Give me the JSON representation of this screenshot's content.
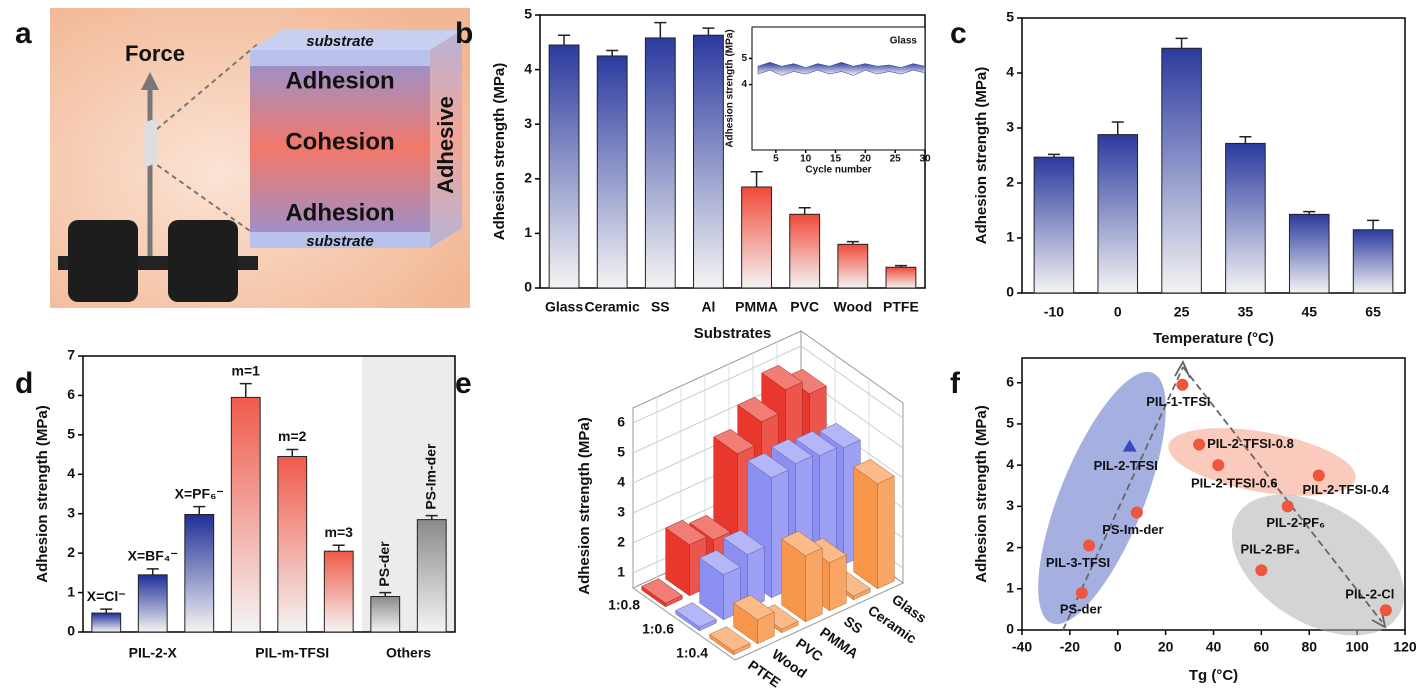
{
  "illustration": {
    "label": "a",
    "force": "Force",
    "top_substrate": "substrate",
    "layers": [
      "Adhesion",
      "Cohesion",
      "Adhesion"
    ],
    "side": "Adhesive",
    "bottom_substrate": "substrate"
  },
  "chart_data": [
    {
      "type": "bar",
      "label": "b",
      "ylabel": "Adhesion strength (MPa)",
      "xlabel": "Substrates",
      "categories": [
        "Glass",
        "Ceramic",
        "SS",
        "Al",
        "PMMA",
        "PVC",
        "Wood",
        "PTFE"
      ],
      "values": [
        4.45,
        4.25,
        4.58,
        4.63,
        1.85,
        1.35,
        0.8,
        0.38
      ],
      "errors": [
        0.18,
        0.1,
        0.28,
        0.13,
        0.28,
        0.12,
        0.05,
        0.03
      ],
      "colors": [
        "#2b3a9e",
        "#2b3a9e",
        "#2b3a9e",
        "#2b3a9e",
        "#f04a3a",
        "#f04a3a",
        "#f04a3a",
        "#f04a3a"
      ],
      "ylim": [
        0,
        5
      ],
      "yticks": [
        0,
        1,
        2,
        3,
        4,
        5
      ]
    },
    {
      "type": "band",
      "annotation": "Glass",
      "ylabel": "Adhesion strength (MPa)",
      "xlabel": "Cycle number",
      "color": "#2b3a9e",
      "x": [
        2,
        4,
        6,
        8,
        10,
        12,
        14,
        16,
        18,
        20,
        22,
        24,
        26,
        28,
        30
      ],
      "upper": [
        4.7,
        4.85,
        4.7,
        4.8,
        4.65,
        4.8,
        4.7,
        4.85,
        4.7,
        4.8,
        4.7,
        4.75,
        4.65,
        4.8,
        4.7
      ],
      "lower": [
        4.4,
        4.55,
        4.35,
        4.5,
        4.4,
        4.55,
        4.4,
        4.5,
        4.35,
        4.55,
        4.4,
        4.5,
        4.4,
        4.55,
        4.45
      ],
      "xlim": [
        1,
        30
      ],
      "xticks": [
        5,
        10,
        15,
        20,
        25,
        30
      ],
      "ylim": [
        1.5,
        6.2
      ],
      "yticks": [
        4,
        5
      ]
    },
    {
      "type": "bar",
      "label": "c",
      "ylabel": "Adhesion strength (MPa)",
      "xlabel": "Temperature (°C)",
      "categories": [
        "-10",
        "0",
        "25",
        "35",
        "45",
        "65"
      ],
      "values": [
        2.47,
        2.88,
        4.45,
        2.72,
        1.43,
        1.15
      ],
      "errors": [
        0.05,
        0.23,
        0.18,
        0.12,
        0.05,
        0.17
      ],
      "colors": [
        "#2b3a9e",
        "#2b3a9e",
        "#2b3a9e",
        "#2b3a9e",
        "#2b3a9e",
        "#2b3a9e"
      ],
      "ylim": [
        0,
        5
      ],
      "yticks": [
        0,
        1,
        2,
        3,
        4,
        5
      ]
    },
    {
      "type": "bar",
      "label": "d",
      "ylabel": "Adhesion strength (MPa)",
      "series": [
        {
          "name": "PIL-2-X",
          "color": "#1f2f96",
          "labels": [
            "X=Cl⁻",
            "X=BF₄⁻",
            "X=PF₆⁻"
          ],
          "values": [
            0.48,
            1.45,
            2.98
          ],
          "errors": [
            0.1,
            0.15,
            0.2
          ]
        },
        {
          "name": "PIL-m-TFSI",
          "color": "#f05a4a",
          "labels": [
            "m=1",
            "m=2",
            "m=3"
          ],
          "values": [
            5.95,
            4.45,
            2.05
          ],
          "errors": [
            0.35,
            0.18,
            0.15
          ]
        },
        {
          "name": "Others",
          "color": "#8a8a8a",
          "background": "#ececec",
          "rotate_labels": true,
          "labels": [
            "PS-der",
            "PS-Im-der"
          ],
          "values": [
            0.9,
            2.85
          ],
          "errors": [
            0.1,
            0.1
          ]
        }
      ],
      "ylim": [
        0,
        7
      ],
      "yticks": [
        0,
        1,
        2,
        3,
        4,
        5,
        6,
        7
      ]
    },
    {
      "type": "bar3d",
      "label": "e",
      "zlabel": "Adhesion strength (MPa)",
      "columns": [
        "PTFE",
        "Wood",
        "PVC",
        "PMMA",
        "SS",
        "Ceramic",
        "Glass"
      ],
      "rows": [
        {
          "name": "1:0.8",
          "color": "#e8372c",
          "values": [
            0.62,
            2.2,
            2.0,
            4.5,
            5.2,
            5.9,
            5.4
          ]
        },
        {
          "name": "1:0.6",
          "color": "#8c8ff2",
          "values": [
            0.62,
            2.0,
            2.3,
            4.5,
            4.6,
            4.5,
            4.4
          ]
        },
        {
          "name": "1:0.4",
          "color": "#f7954a",
          "values": [
            0.62,
            1.3,
            0.62,
            2.7,
            2.1,
            0.62,
            4.0
          ]
        }
      ],
      "zlim": [
        0.5,
        6.5
      ],
      "zticks": [
        1,
        2,
        3,
        4,
        5,
        6
      ]
    },
    {
      "type": "scatter",
      "label": "f",
      "ylabel": "Adhesion strength (MPa)",
      "xlabel": "Tg (°C)",
      "points": [
        {
          "name": "PIL-1-TFSI",
          "x": 27,
          "y": 5.95,
          "color": "#f0553d",
          "marker": "circle"
        },
        {
          "name": "PIL-2-TFSI",
          "x": 5,
          "y": 4.45,
          "color": "#3848c0",
          "marker": "triangle"
        },
        {
          "name": "PIL-2-TFSI-0.8",
          "x": 34,
          "y": 4.5,
          "color": "#f0553d",
          "marker": "circle"
        },
        {
          "name": "PIL-2-TFSI-0.6",
          "x": 42,
          "y": 4.0,
          "color": "#f0553d",
          "marker": "circle"
        },
        {
          "name": "PIL-2-TFSI-0.4",
          "x": 84,
          "y": 3.75,
          "color": "#f0553d",
          "marker": "circle"
        },
        {
          "name": "PS-Im-der",
          "x": 8,
          "y": 2.85,
          "color": "#f0553d",
          "marker": "circle"
        },
        {
          "name": "PIL-2-PF₆",
          "x": 71,
          "y": 3.0,
          "color": "#f0553d",
          "marker": "circle"
        },
        {
          "name": "PIL-3-TFSI",
          "x": -12,
          "y": 2.05,
          "color": "#f0553d",
          "marker": "circle"
        },
        {
          "name": "PIL-2-BF₄",
          "x": 60,
          "y": 1.45,
          "color": "#f0553d",
          "marker": "circle"
        },
        {
          "name": "PS-der",
          "x": -15,
          "y": 0.9,
          "color": "#f0553d",
          "marker": "circle"
        },
        {
          "name": "PIL-2-Cl",
          "x": 112,
          "y": 0.48,
          "color": "#f0553d",
          "marker": "circle"
        }
      ],
      "xlim": [
        -40,
        120
      ],
      "xticks": [
        -40,
        -20,
        0,
        20,
        40,
        60,
        80,
        100,
        120
      ],
      "ylim": [
        0,
        6.6
      ],
      "yticks": [
        0,
        1,
        2,
        3,
        4,
        5,
        6
      ]
    }
  ]
}
